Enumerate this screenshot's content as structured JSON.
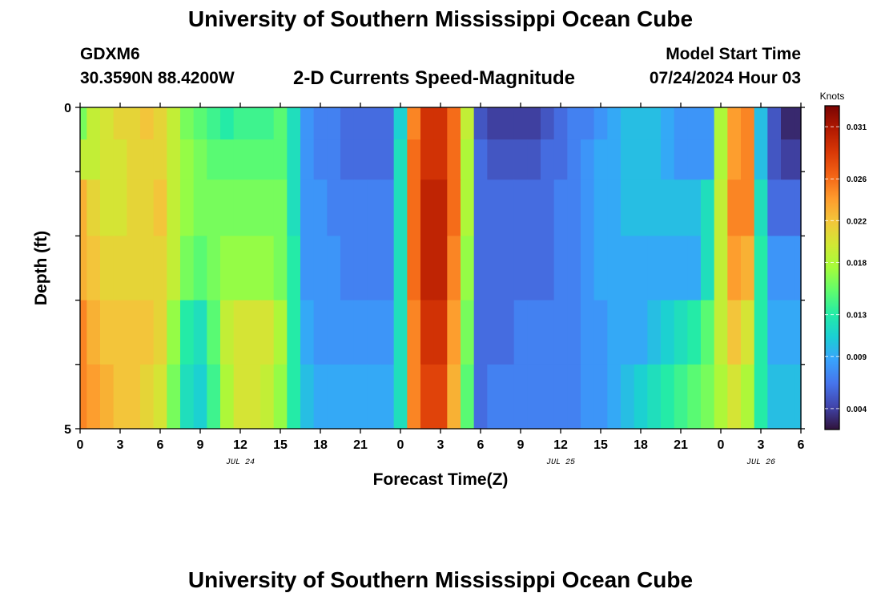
{
  "page": {
    "title": "University of Southern Mississippi Ocean Cube",
    "title_repeat": "University of Southern Mississippi Ocean Cube",
    "station_id": "GDXM6",
    "station_coords": "30.3590N  88.4200W",
    "plot_title": "2-D Currents Speed-Magnitude",
    "model_start_label": "Model Start Time",
    "model_start_value": "07/24/2024 Hour 03"
  },
  "chart_data": {
    "type": "heatmap",
    "title": "2-D Currents Speed-Magnitude",
    "xlabel": "Forecast Time(Z)",
    "ylabel": "Depth (ft)",
    "x_ticks": [
      "0",
      "3",
      "6",
      "9",
      "12",
      "15",
      "18",
      "21",
      "0",
      "3",
      "6",
      "9",
      "12",
      "15",
      "18",
      "21",
      "0",
      "3",
      "6"
    ],
    "x_range_hours": [
      0,
      54
    ],
    "y_ticks": [
      "0",
      "5"
    ],
    "y_range_ft": [
      0,
      5
    ],
    "date_labels": [
      {
        "text": "JUL 24",
        "hour": 12
      },
      {
        "text": "JUL 25",
        "hour": 36
      },
      {
        "text": "JUL 26",
        "hour": 51
      }
    ],
    "colorbar": {
      "units": "Knots",
      "ticks": [
        "0.031",
        "0.026",
        "0.022",
        "0.018",
        "0.013",
        "0.009",
        "0.004"
      ],
      "tick_values": [
        0.031,
        0.026,
        0.022,
        0.018,
        0.013,
        0.009,
        0.004
      ],
      "range": [
        0.002,
        0.033
      ],
      "colormap": [
        "#30123b",
        "#4145ab",
        "#4675ed",
        "#39a2fc",
        "#1bcfd4",
        "#24eca6",
        "#61fc6c",
        "#a4fc3b",
        "#d1e834",
        "#f3c63a",
        "#fe9b2d",
        "#f36315",
        "#d93806",
        "#b11901",
        "#7a0403"
      ]
    },
    "depth_levels_ft": [
      0.25,
      0.75,
      1.5,
      2.5,
      3.5,
      4.5
    ],
    "time_hours": [
      0,
      1,
      2,
      3,
      4,
      5,
      6,
      7,
      8,
      9,
      10,
      11,
      12,
      13,
      14,
      15,
      16,
      17,
      18,
      19,
      20,
      21,
      22,
      23,
      24,
      25,
      26,
      27,
      28,
      29,
      30,
      31,
      32,
      33,
      34,
      35,
      36,
      37,
      38,
      39,
      40,
      41,
      42,
      43,
      44,
      45,
      46,
      47,
      48,
      49,
      50,
      51,
      52,
      53,
      54
    ],
    "series": [
      {
        "depth_ft": 0.25,
        "values": [
          0.016,
          0.019,
          0.02,
          0.021,
          0.021,
          0.022,
          0.021,
          0.019,
          0.016,
          0.015,
          0.014,
          0.013,
          0.014,
          0.014,
          0.014,
          0.015,
          0.012,
          0.008,
          0.007,
          0.007,
          0.006,
          0.006,
          0.006,
          0.006,
          0.011,
          0.025,
          0.029,
          0.029,
          0.026,
          0.019,
          0.005,
          0.004,
          0.004,
          0.004,
          0.004,
          0.005,
          0.006,
          0.007,
          0.007,
          0.008,
          0.009,
          0.01,
          0.01,
          0.01,
          0.009,
          0.008,
          0.008,
          0.008,
          0.018,
          0.024,
          0.025,
          0.01,
          0.005,
          0.003,
          0.003
        ]
      },
      {
        "depth_ft": 0.75,
        "values": [
          0.019,
          0.019,
          0.02,
          0.02,
          0.021,
          0.021,
          0.021,
          0.019,
          0.017,
          0.016,
          0.015,
          0.015,
          0.015,
          0.015,
          0.015,
          0.015,
          0.012,
          0.008,
          0.007,
          0.007,
          0.006,
          0.006,
          0.006,
          0.006,
          0.012,
          0.026,
          0.029,
          0.029,
          0.026,
          0.018,
          0.006,
          0.005,
          0.005,
          0.005,
          0.005,
          0.006,
          0.006,
          0.007,
          0.008,
          0.009,
          0.009,
          0.01,
          0.01,
          0.01,
          0.009,
          0.008,
          0.008,
          0.008,
          0.018,
          0.024,
          0.025,
          0.01,
          0.005,
          0.004,
          0.004
        ]
      },
      {
        "depth_ft": 1.5,
        "values": [
          0.023,
          0.021,
          0.02,
          0.02,
          0.021,
          0.021,
          0.022,
          0.019,
          0.017,
          0.016,
          0.016,
          0.016,
          0.016,
          0.016,
          0.016,
          0.016,
          0.012,
          0.008,
          0.008,
          0.007,
          0.007,
          0.007,
          0.007,
          0.007,
          0.012,
          0.026,
          0.03,
          0.03,
          0.026,
          0.018,
          0.006,
          0.006,
          0.006,
          0.006,
          0.006,
          0.006,
          0.007,
          0.007,
          0.008,
          0.009,
          0.009,
          0.01,
          0.01,
          0.01,
          0.01,
          0.01,
          0.01,
          0.012,
          0.019,
          0.025,
          0.025,
          0.012,
          0.006,
          0.006,
          0.006
        ]
      },
      {
        "depth_ft": 2.5,
        "values": [
          0.023,
          0.022,
          0.021,
          0.021,
          0.021,
          0.021,
          0.021,
          0.019,
          0.016,
          0.015,
          0.016,
          0.017,
          0.017,
          0.017,
          0.017,
          0.016,
          0.013,
          0.008,
          0.008,
          0.008,
          0.007,
          0.007,
          0.007,
          0.007,
          0.012,
          0.026,
          0.03,
          0.03,
          0.025,
          0.017,
          0.006,
          0.006,
          0.006,
          0.006,
          0.006,
          0.006,
          0.007,
          0.007,
          0.008,
          0.009,
          0.009,
          0.009,
          0.009,
          0.009,
          0.009,
          0.009,
          0.009,
          0.012,
          0.019,
          0.024,
          0.023,
          0.013,
          0.008,
          0.008,
          0.008
        ]
      },
      {
        "depth_ft": 3.5,
        "values": [
          0.025,
          0.023,
          0.022,
          0.022,
          0.022,
          0.022,
          0.021,
          0.017,
          0.013,
          0.012,
          0.015,
          0.019,
          0.02,
          0.02,
          0.02,
          0.018,
          0.013,
          0.009,
          0.008,
          0.008,
          0.008,
          0.008,
          0.008,
          0.008,
          0.012,
          0.025,
          0.029,
          0.029,
          0.024,
          0.016,
          0.006,
          0.006,
          0.006,
          0.007,
          0.007,
          0.007,
          0.007,
          0.007,
          0.008,
          0.008,
          0.009,
          0.009,
          0.009,
          0.01,
          0.011,
          0.012,
          0.013,
          0.015,
          0.019,
          0.022,
          0.02,
          0.013,
          0.009,
          0.009,
          0.009
        ]
      },
      {
        "depth_ft": 4.5,
        "values": [
          0.025,
          0.024,
          0.023,
          0.022,
          0.022,
          0.021,
          0.02,
          0.016,
          0.012,
          0.011,
          0.014,
          0.018,
          0.02,
          0.02,
          0.019,
          0.017,
          0.013,
          0.01,
          0.009,
          0.009,
          0.009,
          0.009,
          0.009,
          0.009,
          0.012,
          0.025,
          0.028,
          0.028,
          0.023,
          0.015,
          0.006,
          0.007,
          0.007,
          0.007,
          0.007,
          0.007,
          0.007,
          0.007,
          0.008,
          0.008,
          0.009,
          0.01,
          0.011,
          0.012,
          0.013,
          0.014,
          0.015,
          0.016,
          0.018,
          0.02,
          0.018,
          0.013,
          0.01,
          0.01,
          0.01
        ]
      }
    ]
  }
}
